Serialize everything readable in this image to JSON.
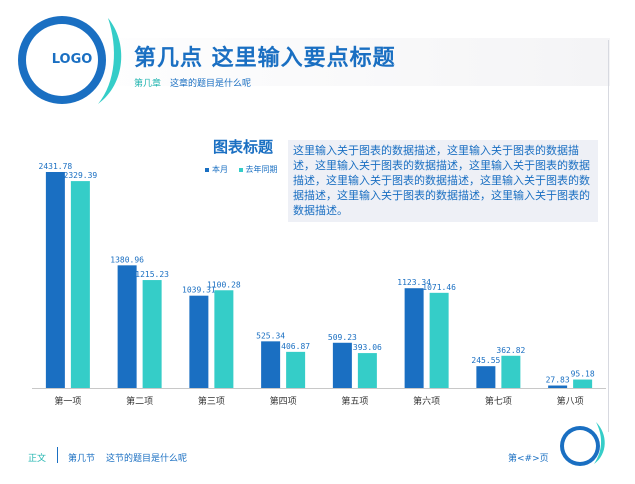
{
  "header": {
    "logo_text": "LOGO",
    "title": "第几点   这里输入要点标题",
    "chapter": "第几章",
    "subtitle": "这章的题目是什么呢"
  },
  "chart_title": "图表标题",
  "description": "这里输入关于图表的数据描述，这里输入关于图表的数据描述，这里输入关于图表的数据描述，这里输入关于图表的数据描述，这里输入关于图表的数据描述，这里输入关于图表的数据描述，这里输入关于图表的数据描述，这里输入关于图表的数据描述。",
  "colors": {
    "primary": "#1a6fc2",
    "secondary": "#35cdc8",
    "accent_teal": "#21b5b0"
  },
  "chart_data": {
    "type": "bar",
    "categories": [
      "第一项",
      "第二项",
      "第三项",
      "第四项",
      "第五项",
      "第六项",
      "第七项",
      "第八项"
    ],
    "series": [
      {
        "name": "本月",
        "values": [
          2431.78,
          1380.96,
          1039.31,
          525.34,
          509.23,
          1123.34,
          245.55,
          27.83
        ]
      },
      {
        "name": "去年同期",
        "values": [
          2329.39,
          1215.23,
          1100.28,
          406.87,
          393.06,
          1071.46,
          362.82,
          95.18
        ]
      }
    ],
    "ylim": [
      0,
      2600
    ],
    "grid": false,
    "legend_position": "top-left"
  },
  "footer": {
    "section": "正文",
    "node": "第几节",
    "node_subtitle": "这节的题目是什么呢",
    "page": "第<#>页"
  }
}
